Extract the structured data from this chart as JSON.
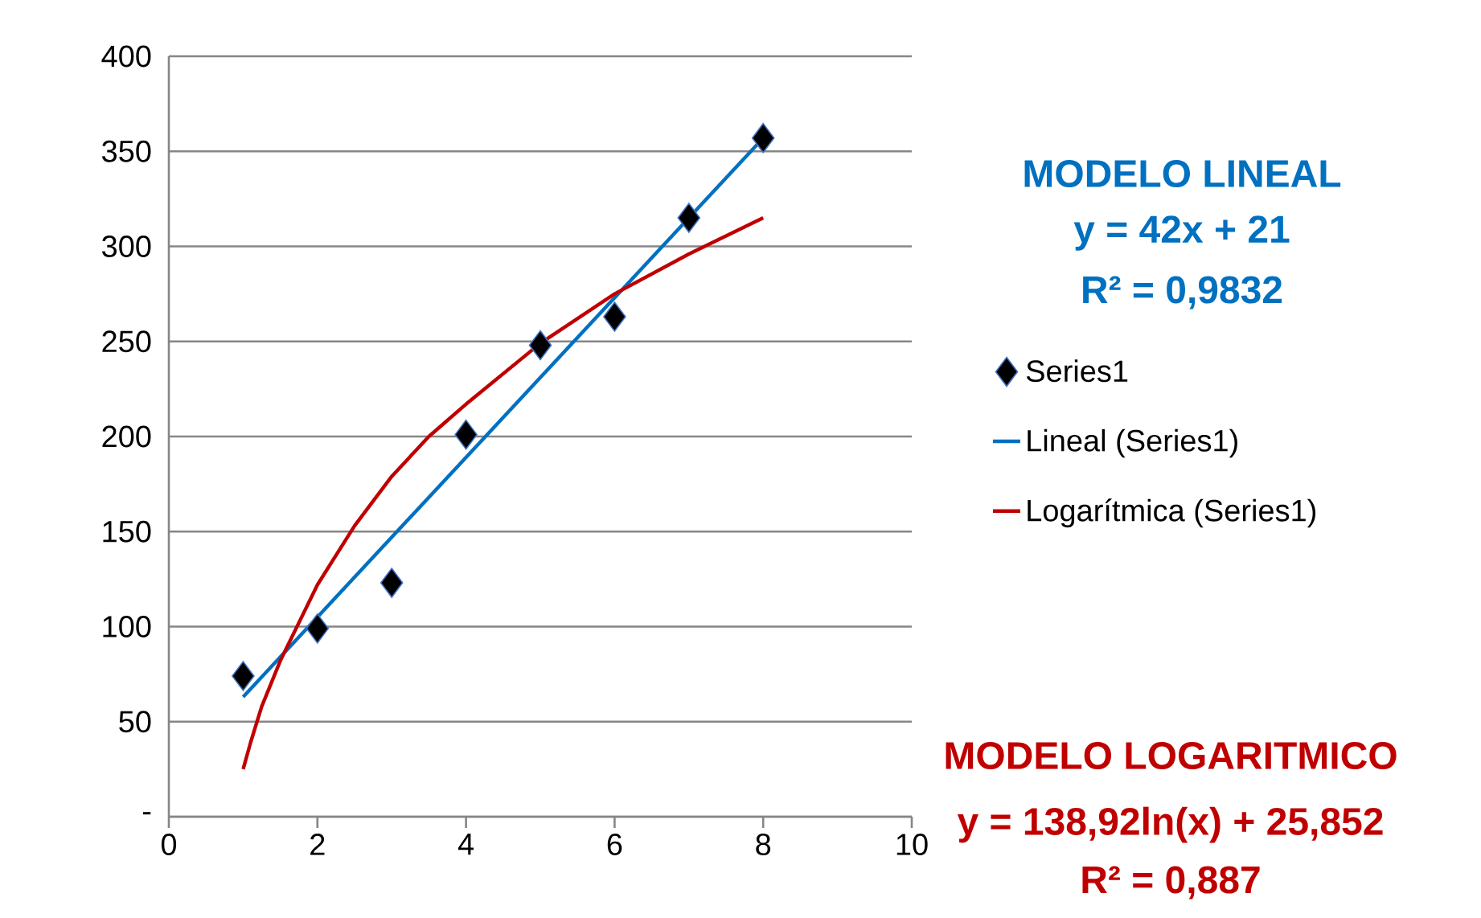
{
  "chart_data": {
    "type": "scatter",
    "xlim": [
      0,
      10
    ],
    "xticks": [
      0,
      2,
      4,
      6,
      8,
      10
    ],
    "ylim": [
      0,
      400
    ],
    "yticks": [
      {
        "value": 0,
        "label": "-"
      },
      50,
      100,
      150,
      200,
      250,
      300,
      350,
      400
    ],
    "grid": "y",
    "legend": "right",
    "series": [
      {
        "name": "Series1",
        "marker": "diamond",
        "color": "#000000",
        "x": [
          1,
          2,
          3,
          4,
          5,
          6,
          7,
          8
        ],
        "values": [
          74,
          99,
          123,
          201,
          248,
          263,
          315,
          357
        ]
      },
      {
        "name": "Lineal (Series1)",
        "type": "line",
        "marker": "none",
        "color": "#0070c0",
        "x": [
          1,
          8
        ],
        "values": [
          63,
          357
        ]
      },
      {
        "name": "Logarítmica (Series1)",
        "type": "line",
        "marker": "none",
        "color": "#c00000",
        "x": [
          1,
          1.1,
          1.25,
          1.5,
          2,
          2.5,
          3,
          3.5,
          4,
          5,
          6,
          7,
          8
        ],
        "values": [
          25,
          39,
          58,
          82,
          122,
          153,
          179,
          200,
          217,
          249,
          275,
          296,
          315
        ]
      }
    ],
    "annotations": [
      "MODELO LINEAL",
      "y = 42x + 21",
      "R² = 0,9832",
      "MODELO LOGARITMICO",
      "y = 138,92ln(x) + 25,852",
      "R² = 0,887"
    ]
  }
}
